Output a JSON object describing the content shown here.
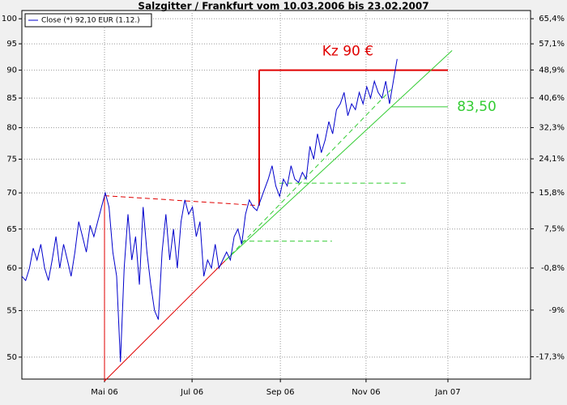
{
  "chart_data": {
    "type": "line",
    "title": "Salzgitter / Frankfurt vom 10.03.2006 bis 23.02.2007",
    "log_scale": true,
    "grid": true,
    "legend": "upper-left",
    "series": [
      {
        "name": "Close (*) 92,10 EUR (1.12.)",
        "color": "#0000cc",
        "values": [
          59,
          58.5,
          60,
          62.5,
          61,
          63,
          60,
          58.5,
          61,
          64,
          60,
          63,
          61,
          59,
          62,
          66,
          64,
          62,
          65.5,
          64,
          66,
          68,
          70,
          68,
          62,
          59,
          49.5,
          60,
          67,
          61,
          64,
          58,
          68,
          62,
          58,
          55,
          54,
          62,
          67,
          61,
          65,
          60,
          66,
          69,
          67,
          68,
          64,
          66,
          59,
          61,
          60,
          63,
          60,
          61,
          62,
          61,
          64,
          65,
          63,
          67,
          69,
          68,
          67.5,
          69,
          70.5,
          72,
          74,
          71,
          69.5,
          72,
          71,
          74,
          72,
          71.5,
          73,
          72,
          77,
          75,
          79,
          76,
          78,
          81,
          79,
          83,
          84,
          86,
          82,
          84,
          83,
          86,
          84,
          87,
          85,
          88,
          86,
          85,
          88,
          84,
          88,
          92.1
        ]
      }
    ],
    "xlim": [
      0,
      134.2
    ],
    "xticks": [
      {
        "value": 21.8,
        "label": "Mai 06"
      },
      {
        "value": 44.9,
        "label": "Jul 06"
      },
      {
        "value": 68.2,
        "label": "Sep 06"
      },
      {
        "value": 90.8,
        "label": "Nov 06"
      },
      {
        "value": 112.4,
        "label": "Jan 07"
      }
    ],
    "ylim": [
      47.8,
      101.7
    ],
    "yticks": [
      50,
      55,
      60,
      65,
      70,
      75,
      80,
      85,
      90,
      95,
      100
    ],
    "y2lim": [
      -21.0,
      68.2
    ],
    "y2ticks": [
      {
        "value": 65.4,
        "label": "65,4%"
      },
      {
        "value": 57.1,
        "label": "57,1%"
      },
      {
        "value": 48.9,
        "label": "48,9%"
      },
      {
        "value": 40.6,
        "label": "40,6%"
      },
      {
        "value": 32.3,
        "label": "32,3%"
      },
      {
        "value": 24.1,
        "label": "24,1%"
      },
      {
        "value": 15.8,
        "label": "15,8%"
      },
      {
        "value": 7.5,
        "label": "7,5%"
      },
      {
        "value": -0.8,
        "label": "-0,8%"
      },
      {
        "value": -9,
        "label": "-9%"
      },
      {
        "value": -17.3,
        "label": "-17,3%"
      }
    ],
    "lines": [
      {
        "x": [
          62.6,
          112.4
        ],
        "y": [
          90,
          90
        ],
        "color": "#e00000",
        "width": 2,
        "dash": false
      },
      {
        "x": [
          62.6,
          62.6
        ],
        "y": [
          90,
          68.2
        ],
        "color": "#e00000",
        "width": 2,
        "dash": false
      },
      {
        "x": [
          21.8,
          21.8
        ],
        "y": [
          47.6,
          69.6
        ],
        "color": "#e00000",
        "width": 1,
        "dash": false
      },
      {
        "x": [
          21.8,
          53.6
        ],
        "y": [
          47.6,
          60.9
        ],
        "color": "#e00000",
        "width": 1,
        "dash": false
      },
      {
        "x": [
          21.8,
          62.6
        ],
        "y": [
          69.6,
          68.2
        ],
        "color": "#e00000",
        "width": 1,
        "dash": true
      },
      {
        "x": [
          53.6,
          113.5
        ],
        "y": [
          60.9,
          93.7
        ],
        "color": "#33cc33",
        "width": 1,
        "dash": false
      },
      {
        "x": [
          53.6,
          97.4
        ],
        "y": [
          60.9,
          86.5
        ],
        "color": "#33cc33",
        "width": 1,
        "dash": true
      },
      {
        "x": [
          57.9,
          81.8
        ],
        "y": [
          63.4,
          63.4
        ],
        "color": "#33cc33",
        "width": 1,
        "dash": true
      },
      {
        "x": [
          67.9,
          102.1
        ],
        "y": [
          71.4,
          71.4
        ],
        "color": "#33cc33",
        "width": 1,
        "dash": true
      },
      {
        "x": [
          97.4,
          112.4
        ],
        "y": [
          83.5,
          83.5
        ],
        "color": "#33cc33",
        "width": 1,
        "dash": false
      }
    ],
    "annotations": [
      {
        "text": "Kz 90 €",
        "x": 86,
        "y": 93.5,
        "color": "#e00000"
      },
      {
        "text": "83,50",
        "x": 120,
        "y": 83.5,
        "color": "#33cc33"
      }
    ]
  }
}
